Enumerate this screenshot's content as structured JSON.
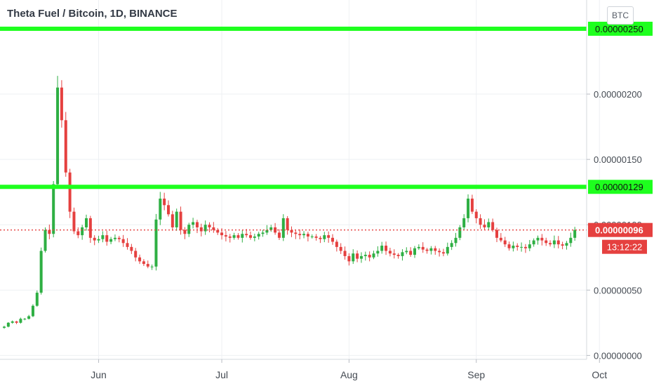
{
  "header": {
    "title": "Theta Fuel / Bitcoin, 1D, BINANCE",
    "currency_button": "BTC"
  },
  "price_badges": {
    "last_price": "0.00000096",
    "countdown": "13:12:22"
  },
  "colors": {
    "up": "#2eaf43",
    "down": "#e5403f",
    "level_line": "#1eff1e",
    "last_price": "#e5403f",
    "grid": "#eef0f3",
    "axis_text": "#444a52"
  },
  "chart_data": {
    "type": "candlestick",
    "title": "Theta Fuel / Bitcoin, 1D, BINANCE",
    "ylim": [
      -3e-08,
      2.72e-06
    ],
    "y_ticks": [
      "0.00000000",
      "0.00000050",
      "0.00000100",
      "0.00000150",
      "0.00000200"
    ],
    "x_ticks": [
      "Jun",
      "Jul",
      "Aug",
      "Sep",
      "Oct"
    ],
    "first_candle": "2020-05-09",
    "candle_count": 140,
    "horizontal_levels": [
      {
        "label": "0.00000250",
        "value": 2.5e-06
      },
      {
        "label": "0.00000129",
        "value": 1.29e-06
      }
    ],
    "last_price": 9.6e-07,
    "closes": [
      2.2e-07,
      2.5e-07,
      2.6e-07,
      2.5e-07,
      2.8e-07,
      2.8e-07,
      3e-07,
      3.8e-07,
      4.8e-07,
      8e-07,
      9.6e-07,
      9.3e-07,
      1.31e-06,
      2.05e-06,
      1.8e-06,
      1.4e-06,
      1.1e-06,
      9.5e-07,
      9.2e-07,
      9.8e-07,
      1.05e-06,
      9e-07,
      8.8e-07,
      8.9e-07,
      9.2e-07,
      8.7e-07,
      8.9e-07,
      9e-07,
      8.9e-07,
      8.6e-07,
      8.3e-07,
      8e-07,
      7.5e-07,
      7.2e-07,
      7e-07,
      6.8e-07,
      6.8e-07,
      1.04e-06,
      1.2e-06,
      1.15e-06,
      1.08e-06,
      9.8e-07,
      1.1e-06,
      9.6e-07,
      9.3e-07,
      1e-06,
      1.02e-06,
      9.8e-07,
      9.5e-07,
      1e-06,
      9.8e-07,
      9.6e-07,
      9.4e-07,
      9.2e-07,
      9.1e-07,
      9e-07,
      9.2e-07,
      9e-07,
      9.3e-07,
      9.2e-07,
      9e-07,
      9.1e-07,
      9.3e-07,
      9.4e-07,
      9.6e-07,
      9.8e-07,
      9.4e-07,
      9e-07,
      1.05e-06,
      9.6e-07,
      9.4e-07,
      9.3e-07,
      9.2e-07,
      9.3e-07,
      9.1e-07,
      9.1e-07,
      9e-07,
      8.9e-07,
      9.2e-07,
      9e-07,
      8.7e-07,
      8.3e-07,
      8e-07,
      7.6e-07,
      7.2e-07,
      7.8e-07,
      7.4e-07,
      7.6e-07,
      7.7e-07,
      7.5e-07,
      7.8e-07,
      8e-07,
      8.4e-07,
      8e-07,
      7.8e-07,
      7.7e-07,
      7.6e-07,
      7.9e-07,
      8e-07,
      7.7e-07,
      8.2e-07,
      8.3e-07,
      8.1e-07,
      8e-07,
      8.2e-07,
      8e-07,
      7.9e-07,
      7.8e-07,
      8.3e-07,
      8.6e-07,
      9e-07,
      9.8e-07,
      1.05e-06,
      1.2e-06,
      1.1e-06,
      1.05e-06,
      1e-06,
      9.8e-07,
      1.02e-06,
      9.6e-07,
      9e-07,
      8.8e-07,
      8.5e-07,
      8.2e-07,
      8.4e-07,
      8.3e-07,
      8.3e-07,
      8.2e-07,
      8.5e-07,
      8.8e-07,
      9e-07,
      8.8e-07,
      8.6e-07,
      8.5e-07,
      8.8e-07,
      8.5e-07,
      8.4e-07,
      8.6e-07,
      9e-07,
      9.6e-07
    ]
  }
}
